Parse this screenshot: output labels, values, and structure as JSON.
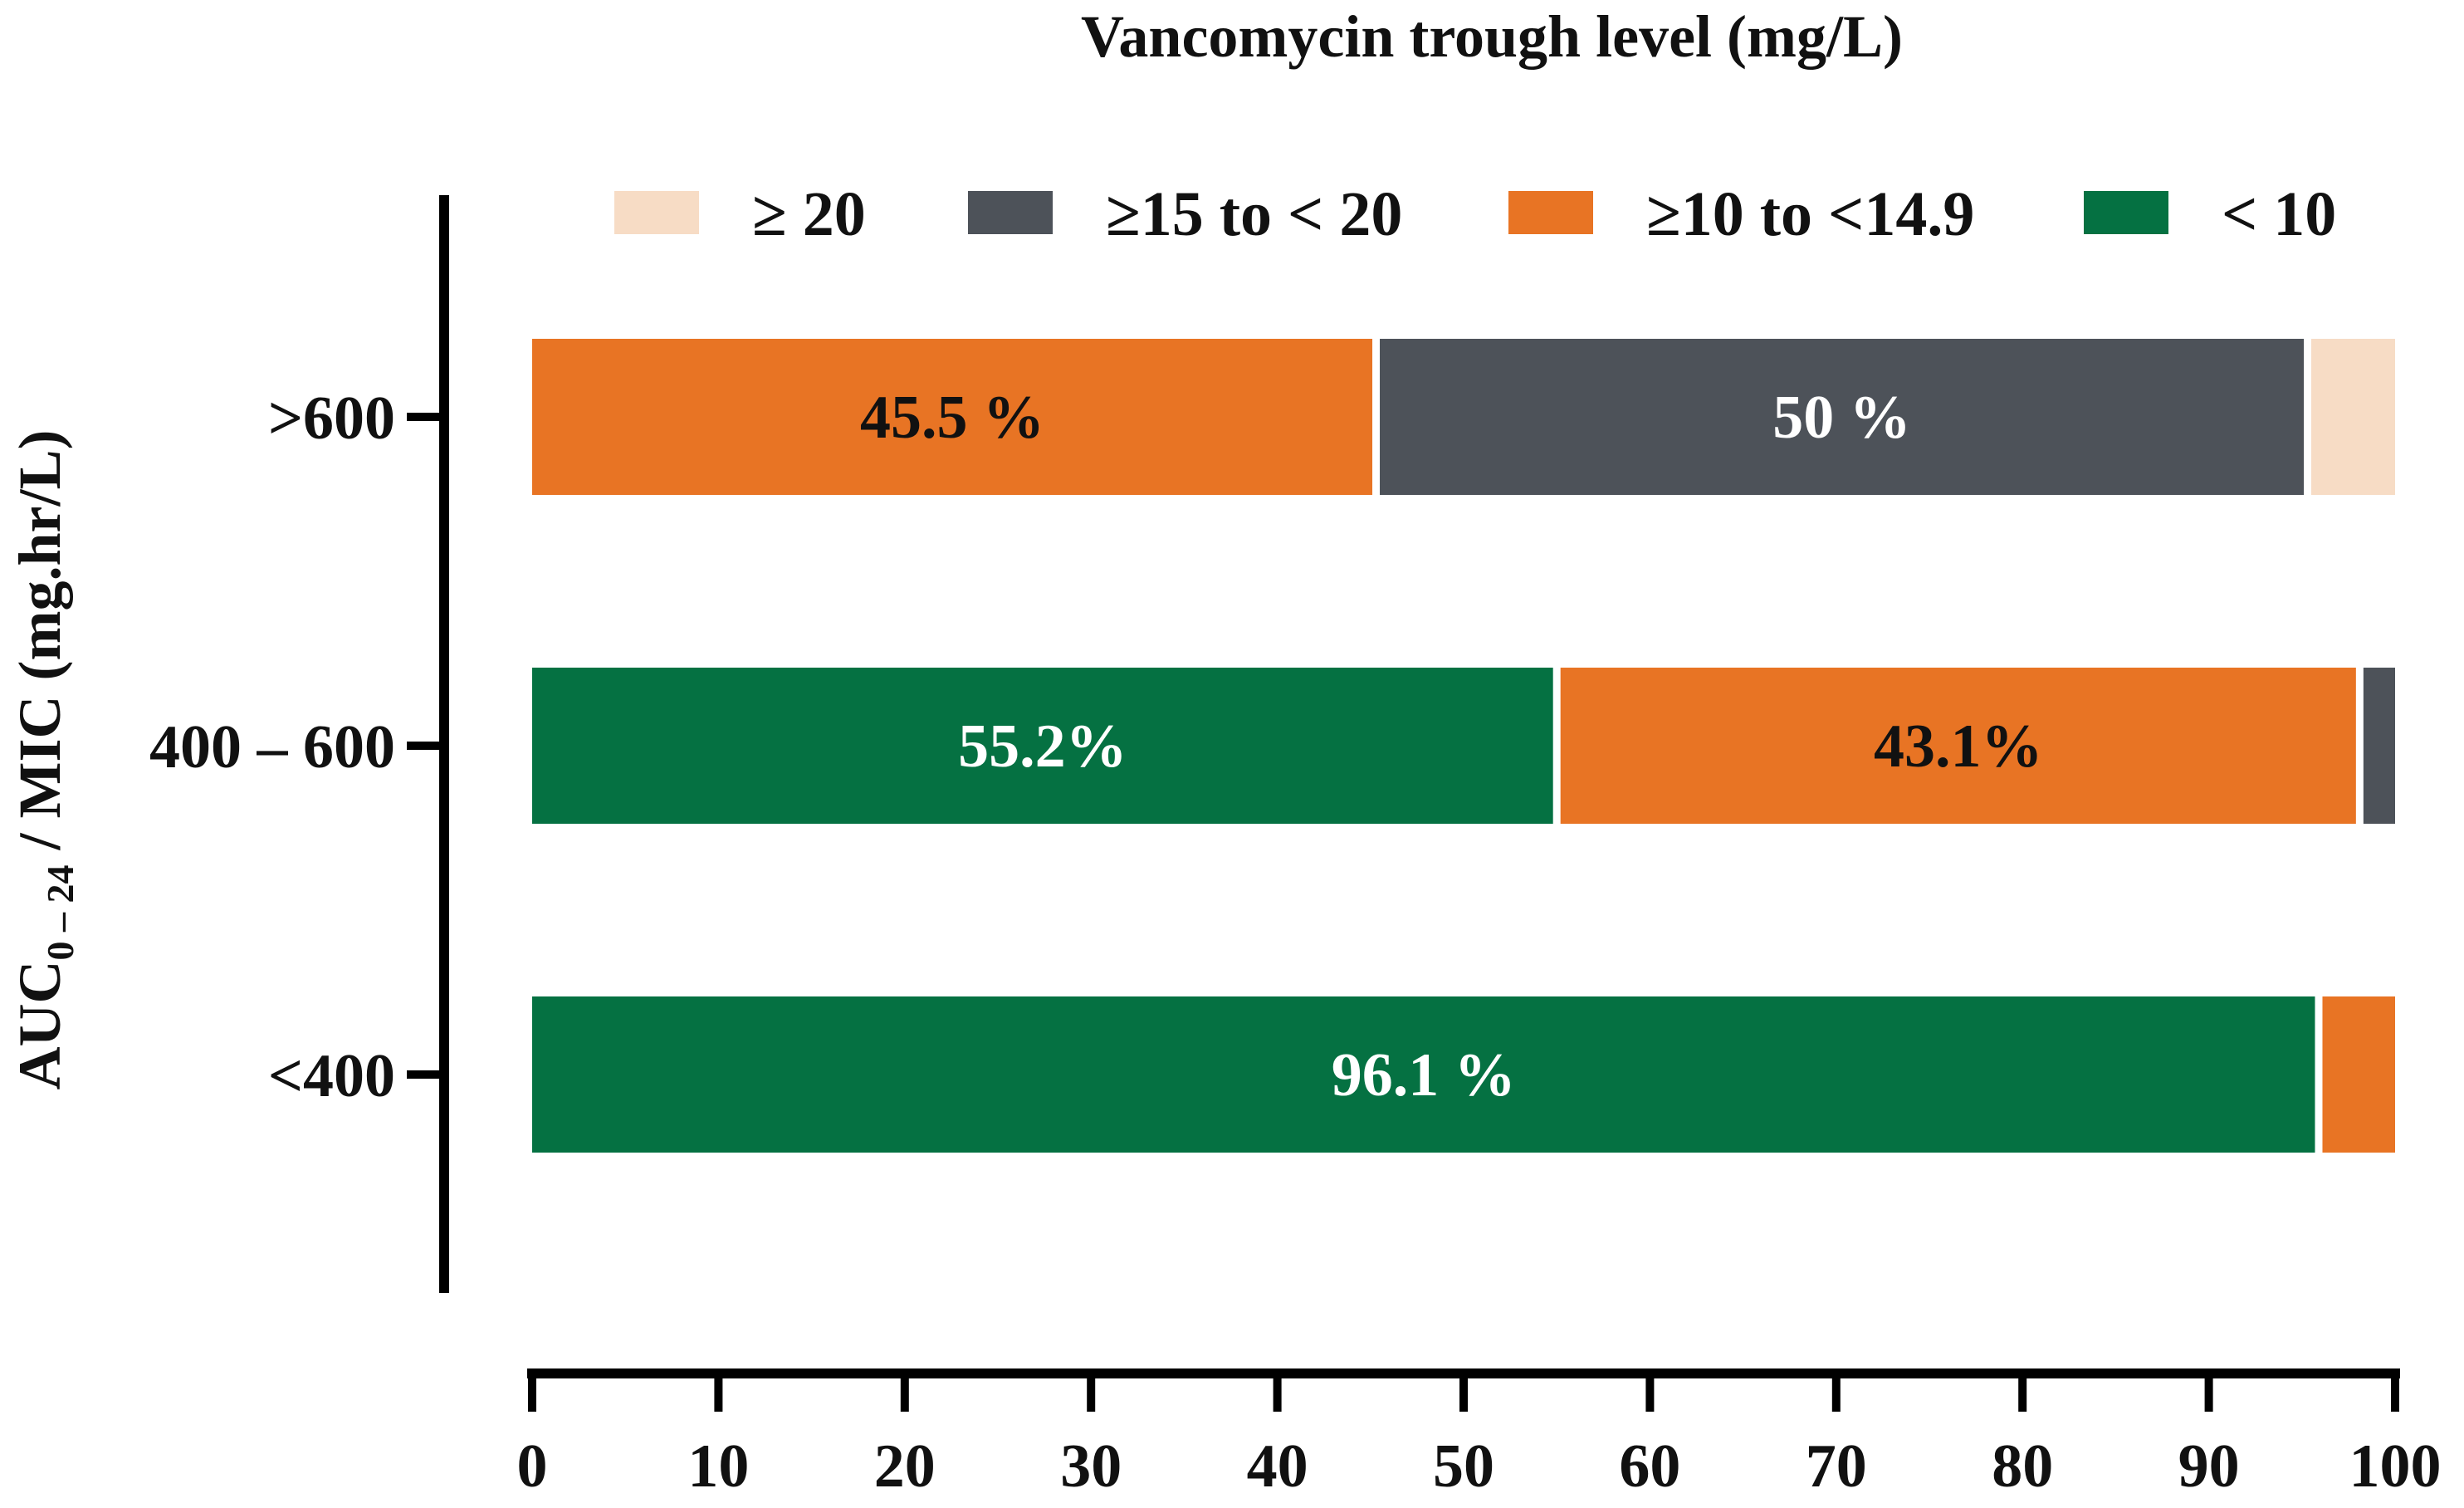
{
  "chart_data": {
    "type": "bar",
    "orientation": "horizontal",
    "stacked": true,
    "title": "Vancomycin trough level (mg/L)",
    "ylabel": {
      "main": "AUC",
      "subscript": "0 – 24",
      "rest": " / MIC (mg.hr/L)"
    },
    "xlabel": "",
    "xlim": [
      0,
      100
    ],
    "xticks": [
      "0",
      "10",
      "20",
      "30",
      "40",
      "50",
      "60",
      "70",
      "80",
      "90",
      "100"
    ],
    "categories": [
      ">600",
      "400 – 600",
      "<400"
    ],
    "legend_position": "top",
    "legend": [
      {
        "label": "≥ 20",
        "color": "#f7dcc5"
      },
      {
        "label": "≥15 to < 20",
        "color": "#4d5259"
      },
      {
        "label": "≥10 to <14.9",
        "color": "#e87424"
      },
      {
        "label": "< 10",
        "color": "#057142"
      }
    ],
    "series": [
      {
        "name": "< 10",
        "color": "#057142",
        "label_color": "#ffffff",
        "values": [
          0,
          55.2,
          96.1
        ],
        "labels": [
          "",
          "55.2%",
          "96.1 %"
        ]
      },
      {
        "name": "≥10 to <14.9",
        "color": "#e87424",
        "label_color": "#111111",
        "values": [
          45.5,
          43.1,
          3.9
        ],
        "labels": [
          "45.5 %",
          "43.1%",
          ""
        ]
      },
      {
        "name": "≥15 to < 20",
        "color": "#4d5259",
        "label_color": "#ffffff",
        "values": [
          50,
          1.7,
          0
        ],
        "labels": [
          "50 %",
          "",
          ""
        ]
      },
      {
        "name": "≥ 20",
        "color": "#f7dcc5",
        "label_color": "#111111",
        "values": [
          4.5,
          0,
          0
        ],
        "labels": [
          "",
          "",
          ""
        ]
      }
    ],
    "grid": false
  }
}
